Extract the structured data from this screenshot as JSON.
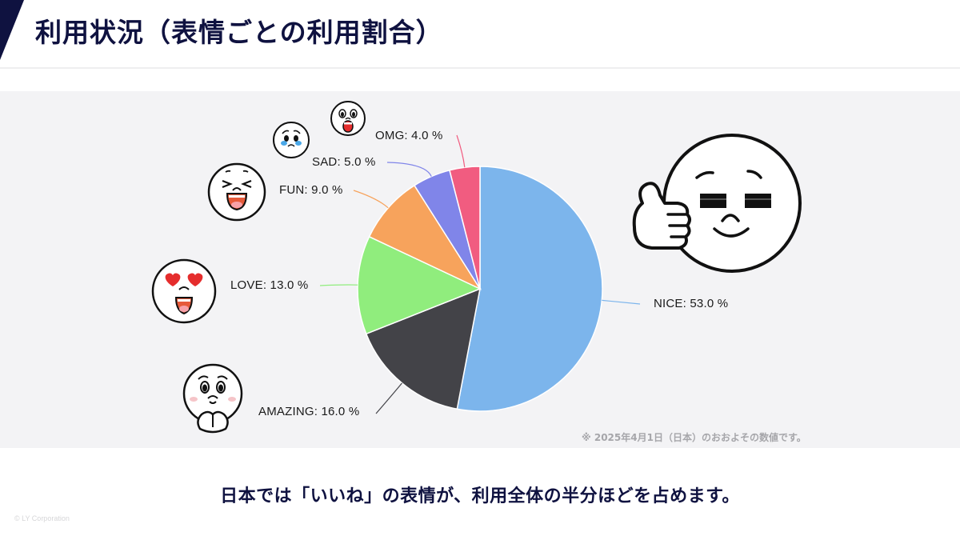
{
  "header": {
    "title": "利用状況（表情ごとの利用割合）",
    "accent_color": "#0f1240"
  },
  "chart_data": {
    "type": "pie",
    "title": "利用状況（表情ごとの利用割合）",
    "start_angle_deg": 0,
    "direction": "clockwise",
    "label_format": "{name}: {value} %",
    "slices": [
      {
        "name": "NICE",
        "value": 53.0,
        "color": "#7cb5ec",
        "label": "NICE: 53.0 %"
      },
      {
        "name": "AMAZING",
        "value": 16.0,
        "color": "#434348",
        "label": "AMAZING: 16.0 %"
      },
      {
        "name": "LOVE",
        "value": 13.0,
        "color": "#90ed7d",
        "label": "LOVE: 13.0 %"
      },
      {
        "name": "FUN",
        "value": 9.0,
        "color": "#f7a35c",
        "label": "FUN: 9.0 %"
      },
      {
        "name": "SAD",
        "value": 5.0,
        "color": "#8085e9",
        "label": "SAD: 5.0 %"
      },
      {
        "name": "OMG",
        "value": 4.0,
        "color": "#f15c80",
        "label": "OMG: 4.0 %"
      }
    ],
    "legend": "none",
    "data_labels": "outside with leader lines",
    "footnote": "※ 2025年4月1日（日本）のおおよその数値です。"
  },
  "faces": [
    {
      "name": "NICE",
      "icon": "thumbs-up-sunglasses-face-icon"
    },
    {
      "name": "AMAZING",
      "icon": "touched-clasped-hands-face-icon"
    },
    {
      "name": "LOVE",
      "icon": "heart-eyes-face-icon"
    },
    {
      "name": "FUN",
      "icon": "laughing-face-icon"
    },
    {
      "name": "SAD",
      "icon": "crying-face-icon"
    },
    {
      "name": "OMG",
      "icon": "shocked-face-icon"
    }
  ],
  "summary": "日本では「いいね」の表情が、利用全体の半分ほどを占めます。",
  "copyright": "© LY Corporation"
}
